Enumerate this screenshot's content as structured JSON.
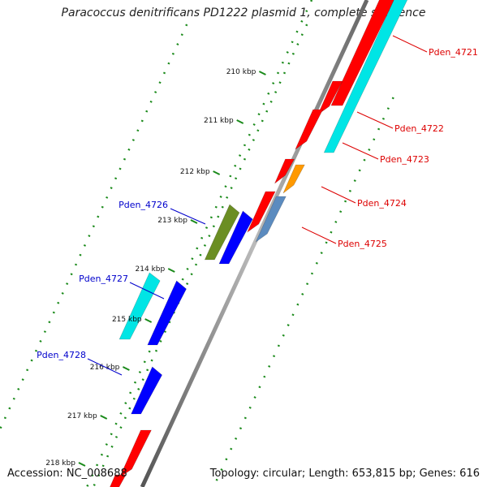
{
  "header": {
    "title": "Paracoccus denitrificans PD1222 plasmid 1, complete sequence"
  },
  "footer": {
    "accession": "Accession: NC_008688",
    "summary": "Topology: circular; Length: 653,815 bp; Genes: 616"
  },
  "scale_ticks": [
    {
      "label": "210 kbp"
    },
    {
      "label": "211 kbp"
    },
    {
      "label": "212 kbp"
    },
    {
      "label": "213 kbp"
    },
    {
      "label": "214 kbp"
    },
    {
      "label": "215 kbp"
    },
    {
      "label": "216 kbp"
    },
    {
      "label": "217 kbp"
    },
    {
      "label": "218 kbp"
    }
  ],
  "gene_labels": [
    {
      "name": "Pden_4721",
      "strand": "forward",
      "color": "#dd0000"
    },
    {
      "name": "Pden_4722",
      "strand": "forward",
      "color": "#dd0000"
    },
    {
      "name": "Pden_4723",
      "strand": "forward",
      "color": "#dd0000"
    },
    {
      "name": "Pden_4724",
      "strand": "forward",
      "color": "#dd0000"
    },
    {
      "name": "Pden_4725",
      "strand": "forward",
      "color": "#dd0000"
    },
    {
      "name": "Pden_4726",
      "strand": "reverse",
      "color": "#0000cc"
    },
    {
      "name": "Pden_4727",
      "strand": "reverse",
      "color": "#0000cc"
    },
    {
      "name": "Pden_4728",
      "strand": "reverse",
      "color": "#0000cc"
    }
  ],
  "colors": {
    "cds": "#ff0000",
    "cds_reverse": "#0000ff",
    "rrna_cyan": "#00e5e5",
    "orange": "#ff9900",
    "olive": "#6b8e23",
    "steelblue": "#5b8bbf",
    "backbone": "#777777",
    "dots": "#1a8a1a"
  }
}
